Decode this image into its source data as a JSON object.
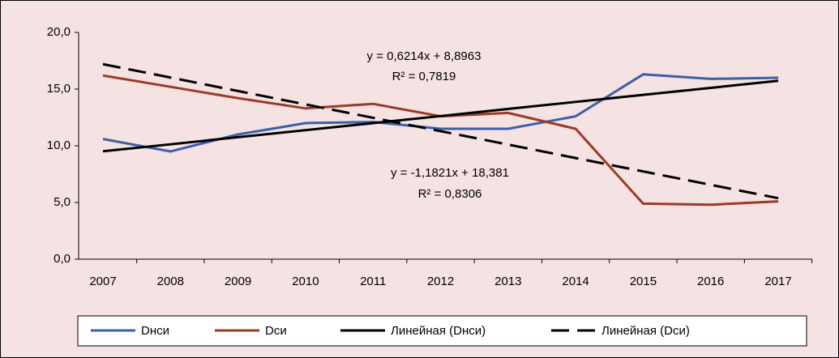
{
  "chart_data": {
    "type": "line",
    "categories": [
      "2007",
      "2008",
      "2009",
      "2010",
      "2011",
      "2012",
      "2013",
      "2014",
      "2015",
      "2016",
      "2017"
    ],
    "series": [
      {
        "name": "Dнси",
        "color": "#3d5fa8",
        "dash": false,
        "values": [
          10.6,
          9.5,
          11.0,
          12.0,
          12.1,
          11.5,
          11.5,
          12.6,
          16.3,
          15.9,
          16.0
        ]
      },
      {
        "name": "Dси",
        "color": "#9b3a27",
        "dash": false,
        "values": [
          16.2,
          15.2,
          14.2,
          13.3,
          13.7,
          12.6,
          12.9,
          11.5,
          4.9,
          4.8,
          5.1
        ]
      },
      {
        "name": "Линейная (Dнси)",
        "color": "#000000",
        "dash": false,
        "values": [
          9.52,
          10.13,
          10.76,
          11.38,
          12.0,
          12.62,
          13.25,
          13.87,
          14.49,
          15.11,
          15.73
        ]
      },
      {
        "name": "Линейная (Dси)",
        "color": "#000000",
        "dash": true,
        "values": [
          17.2,
          16.02,
          14.83,
          13.65,
          12.47,
          11.29,
          10.11,
          8.92,
          7.74,
          6.56,
          5.38
        ]
      }
    ],
    "annotations": [
      "y = 0,6214x + 8,8963",
      "R² = 0,7819",
      "y = -1,1821x + 18,381",
      "R² = 0,8306"
    ],
    "ylim": [
      0,
      20
    ],
    "yticks": [
      {
        "value": 0,
        "label": "0,0"
      },
      {
        "value": 5,
        "label": "5,0"
      },
      {
        "value": 10,
        "label": "10,0"
      },
      {
        "value": 15,
        "label": "15,0"
      },
      {
        "value": 20,
        "label": "20,0"
      }
    ],
    "grid": false,
    "legend": "bottom"
  }
}
